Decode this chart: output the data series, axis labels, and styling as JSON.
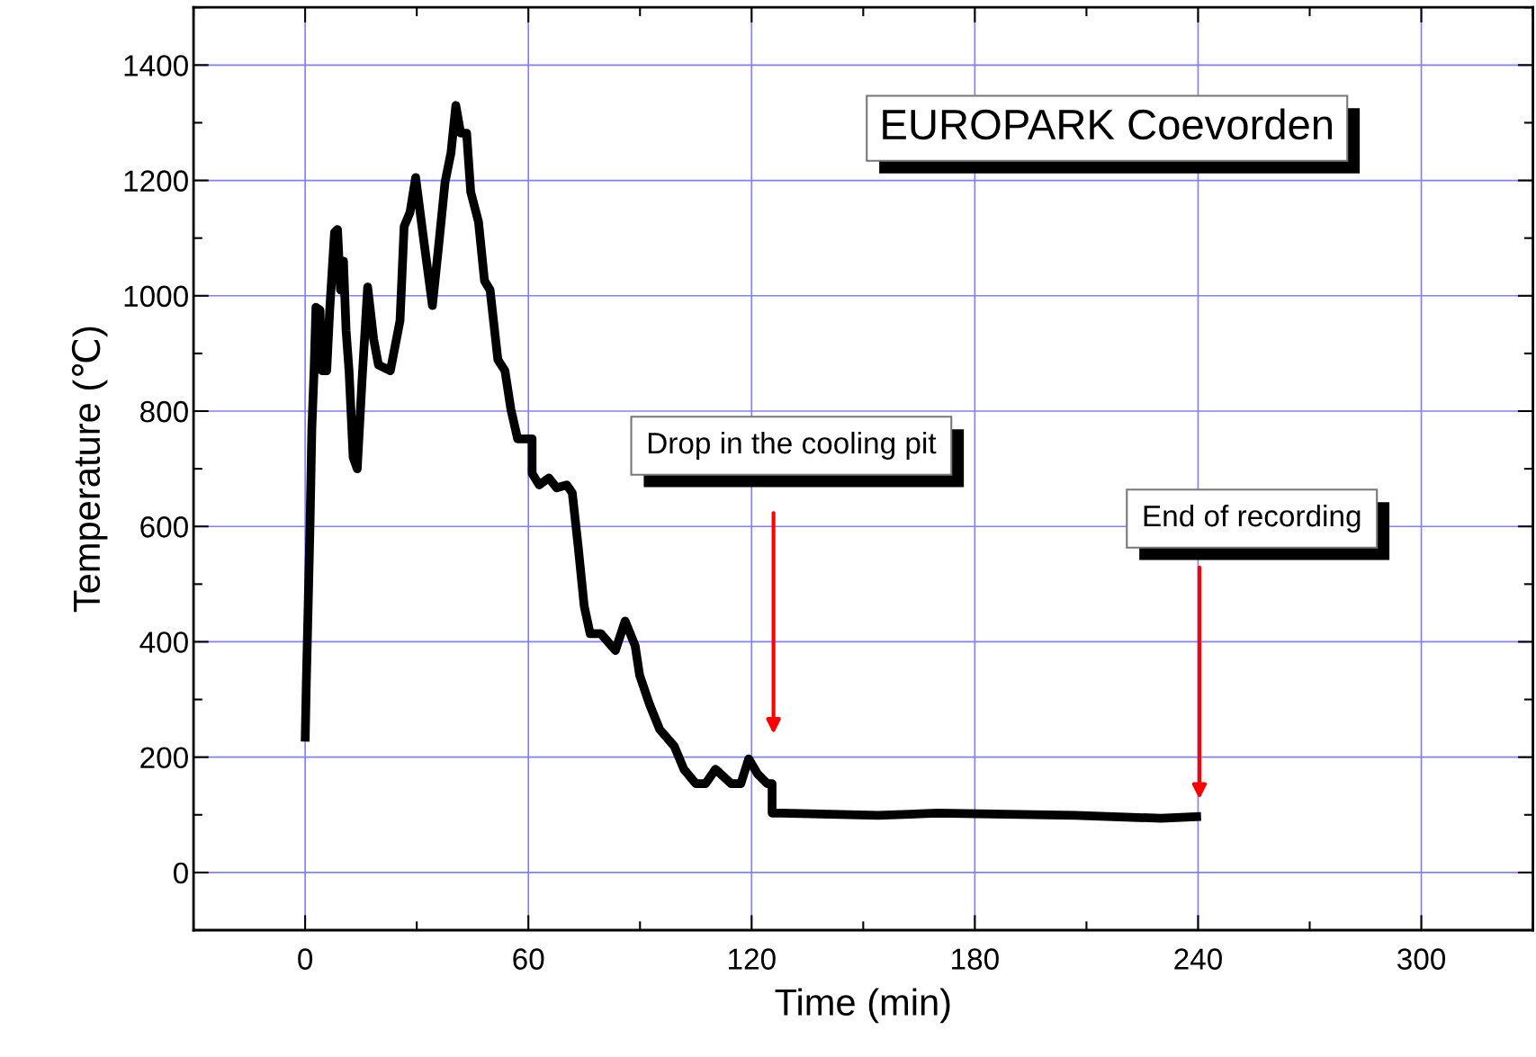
{
  "chart_data": {
    "type": "line",
    "title": "EUROPARK Coevorden",
    "xlabel": "Time (min)",
    "ylabel": "Temperature (℃)",
    "x": [
      0,
      0.3,
      0.8,
      1.3,
      1.8,
      2.4,
      2.9,
      4,
      4.5,
      5.8,
      6.6,
      7.9,
      8.7,
      9.5,
      10.3,
      11,
      11.8,
      12.9,
      14,
      15.3,
      16.8,
      18.4,
      19.7,
      22.9,
      25.5,
      26.6,
      28.2,
      29.7,
      31.6,
      34.2,
      36,
      37.6,
      39.2,
      40.5,
      41.8,
      43.4,
      44.5,
      46.6,
      48.2,
      49.7,
      51.8,
      53.7,
      55.3,
      57.1,
      61,
      61,
      62.9,
      65.5,
      67.6,
      70.3,
      71.8,
      73.4,
      75,
      76.6,
      79.5,
      83.4,
      86,
      88.7,
      89.9,
      92.6,
      95.3,
      99.2,
      101.8,
      105,
      107.6,
      110.3,
      114.5,
      117.1,
      119.2,
      121.6,
      124.2,
      125.5,
      125.5,
      128,
      154,
      170,
      207,
      230,
      240.8
    ],
    "series": [
      {
        "color": "#000000",
        "values": [
          227,
          325,
          460,
          600,
          770,
          870,
          980,
          975,
          870,
          870,
          975,
          1110,
          1115,
          1010,
          1060,
          940,
          870,
          720,
          700,
          855,
          1015,
          925,
          880,
          870,
          957,
          1120,
          1145,
          1205,
          1110,
          983,
          1094,
          1197,
          1248,
          1330,
          1282,
          1282,
          1180,
          1128,
          1026,
          1010,
          889,
          870,
          803,
          752,
          752,
          692,
          672,
          684,
          667,
          672,
          658,
          564,
          462,
          414,
          414,
          385,
          436,
          393,
          342,
          291,
          248,
          219,
          179,
          154,
          154,
          179,
          154,
          154,
          197,
          171,
          154,
          154,
          103,
          103,
          99,
          103,
          99,
          94,
          97
        ]
      }
    ],
    "xlim": [
      -30,
      330
    ],
    "xticks": [
      0,
      60,
      120,
      180,
      240,
      300
    ],
    "ylim": [
      -100,
      1500
    ],
    "yticks": [
      0,
      200,
      400,
      600,
      800,
      1000,
      1200,
      1400
    ],
    "grid": true,
    "marker": "none",
    "line_style": "solid",
    "annotations": [
      "Drop in the cooling pit",
      "End of recording"
    ]
  }
}
